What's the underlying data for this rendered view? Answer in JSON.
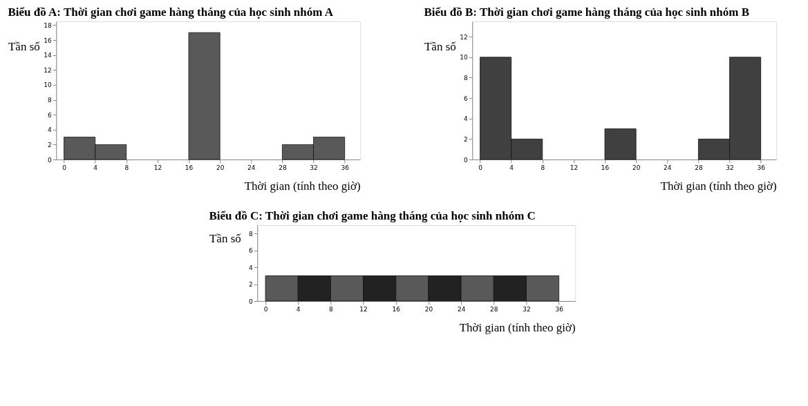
{
  "chart_data": [
    {
      "type": "histogram",
      "title": "Biểu đồ A: Thời gian chơi game hàng tháng của học sinh nhóm A",
      "xlabel": "Thời gian (tính theo giờ)",
      "ylabel": "Tần số",
      "bins": [
        0,
        4,
        8,
        12,
        16,
        20,
        24,
        28,
        32,
        36
      ],
      "values": [
        3,
        2,
        0,
        0,
        17,
        0,
        0,
        2,
        3
      ],
      "color": "#595959",
      "xlim": [
        -1,
        38
      ],
      "xticks": [
        0,
        4,
        8,
        12,
        16,
        20,
        24,
        28,
        32,
        36
      ],
      "ylim": [
        0,
        18.5
      ],
      "yticks": [
        0,
        2,
        4,
        6,
        8,
        10,
        12,
        14,
        16,
        18
      ],
      "grid": false
    },
    {
      "type": "histogram",
      "title": "Biểu đồ B: Thời gian chơi game hàng tháng của học sinh nhóm B",
      "xlabel": "Thời gian (tính theo giờ)",
      "ylabel": "Tần số",
      "bins": [
        0,
        4,
        8,
        12,
        16,
        20,
        24,
        28,
        32,
        36
      ],
      "values": [
        10,
        2,
        0,
        0,
        3,
        0,
        0,
        2,
        10
      ],
      "color": "#404040",
      "xlim": [
        -1,
        38
      ],
      "xticks": [
        0,
        4,
        8,
        12,
        16,
        20,
        24,
        28,
        32,
        36
      ],
      "ylim": [
        0,
        13.5
      ],
      "yticks": [
        0,
        2,
        4,
        6,
        8,
        10,
        12
      ],
      "grid": false
    },
    {
      "type": "histogram",
      "title": "Biểu đồ C: Thời gian chơi game hàng tháng của học sinh nhóm C",
      "xlabel": "Thời gian (tính theo giờ)",
      "ylabel": "Tần số",
      "bins": [
        0,
        4,
        8,
        12,
        16,
        20,
        24,
        28,
        32,
        36
      ],
      "values": [
        3,
        3,
        3,
        3,
        3,
        3,
        3,
        3,
        3
      ],
      "colors": [
        "#595959",
        "#222222",
        "#595959",
        "#222222",
        "#595959",
        "#222222",
        "#595959",
        "#222222",
        "#595959"
      ],
      "xlim": [
        -1,
        38
      ],
      "xticks": [
        0,
        4,
        8,
        12,
        16,
        20,
        24,
        28,
        32,
        36
      ],
      "ylim": [
        0,
        9
      ],
      "yticks": [
        0,
        2,
        4,
        6,
        8
      ],
      "grid": false
    }
  ]
}
